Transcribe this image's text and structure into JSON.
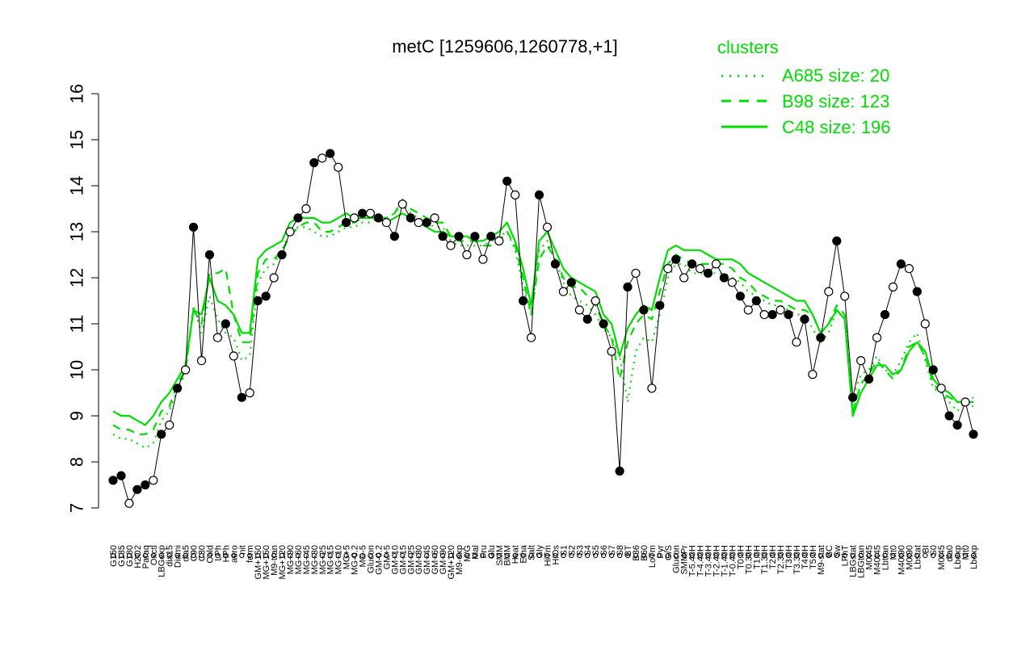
{
  "colors": {
    "accent": "#00dd00",
    "points": "#000000",
    "open_point_fill": "#ffffff"
  },
  "chart_data": {
    "type": "line",
    "title": "metC [1259606,1260778,+1]",
    "xlabel": "",
    "ylabel": "",
    "ylim": [
      7,
      16
    ],
    "yticks": [
      7,
      8,
      9,
      10,
      11,
      12,
      13,
      14,
      15,
      16
    ],
    "grid": false,
    "legend": {
      "title": "clusters",
      "position": "top-right",
      "entries": [
        {
          "label": "A685 size: 20",
          "style": "dotted"
        },
        {
          "label": "B98 size: 123",
          "style": "dashed"
        },
        {
          "label": "C48 size: 196",
          "style": "solid"
        }
      ]
    },
    "x_tick_labels": [
      "G150",
      "G135",
      "G180",
      "H2O2",
      "Paraq",
      "Oxctl",
      "LBGexp",
      "dia15",
      "Diami",
      "dia5",
      "C90",
      "C30",
      "Cold",
      "LPh",
      "HPh",
      "aero",
      "nit",
      "ferm",
      "GM+150",
      "MG+150",
      "M9-tran",
      "MG+120",
      "MG+90",
      "MG+60",
      "MG+45",
      "MG+30",
      "MG+25",
      "MG+15",
      "MG+10",
      "MG+5",
      "MG-0.2",
      "MG-5",
      "Glucon",
      "GM-0.2",
      "GM+5",
      "GM+10",
      "GM+15",
      "GM+25",
      "GM+30",
      "GM+45",
      "GM+60",
      "GM+90",
      "GM+120",
      "M9-exp",
      "M/G",
      "Mal",
      "Fru",
      "Glu",
      "SMM",
      "BMM",
      "Heat",
      "Etha",
      "Salt",
      "Gly",
      "HiTm",
      "HiOs",
      "S1",
      "S2",
      "S3",
      "S4",
      "S5",
      "S6",
      "S7",
      "S8",
      "BT",
      "B36",
      "B60",
      "LoTm",
      "Pyr",
      "G/S",
      "Glucon",
      "SMMPr",
      "T-5.40H",
      "T-4.40H",
      "T-3.40H",
      "T-2.40H",
      "T-1.40H",
      "T-0.40H",
      "T0.0H",
      "T0.30H",
      "T1.0H",
      "T1.30H",
      "T2.0H",
      "T2.30H",
      "T3.0H",
      "T3.30H",
      "T4.0H",
      "T5.0H",
      "M9-stat",
      "BC",
      "Sw",
      "LPhT",
      "LBGstat",
      "LBGtran",
      "M0t45",
      "M40t45",
      "Lbtran",
      "Mt0",
      "M40t90",
      "M0t90",
      "Lbstat",
      "BI",
      "S0",
      "M0t45",
      "dia0",
      "Lbexp",
      "Mt0",
      "Lbexp"
    ],
    "series": [
      {
        "name": "A685 size: 20",
        "style": "dotted",
        "y": [
          8.6,
          8.5,
          8.5,
          8.4,
          8.3,
          8.4,
          8.9,
          9.1,
          9.6,
          9.9,
          11.4,
          10.8,
          11.6,
          11.1,
          10.8,
          10.7,
          10.2,
          10.3,
          11.9,
          12.2,
          12.3,
          12.6,
          13.0,
          13.1,
          13.1,
          13.0,
          12.9,
          12.9,
          13.0,
          13.1,
          13.1,
          13.2,
          13.2,
          13.3,
          13.3,
          13.4,
          13.6,
          13.4,
          13.3,
          13.2,
          13.1,
          13.1,
          12.8,
          12.7,
          12.7,
          12.7,
          12.7,
          12.8,
          12.9,
          13.0,
          12.6,
          11.8,
          11.2,
          12.6,
          12.8,
          12.4,
          11.9,
          11.6,
          11.5,
          11.4,
          11.2,
          10.9,
          10.7,
          10.3,
          9.3,
          10.4,
          10.7,
          10.6,
          11.2,
          12.0,
          12.3,
          12.3,
          12.1,
          12.1,
          12.1,
          12.1,
          12.1,
          12.0,
          11.9,
          11.7,
          11.6,
          11.5,
          11.4,
          11.4,
          11.3,
          11.2,
          11.2,
          10.9,
          10.6,
          10.8,
          11.3,
          11.1,
          9.4,
          9.9,
          10.0,
          10.3,
          10.0,
          9.9,
          10.2,
          10.6,
          10.8,
          10.2,
          9.6,
          9.5,
          9.3,
          9.1,
          9.3,
          9.2
        ]
      },
      {
        "name": "B98 size: 123",
        "style": "dashed",
        "y": [
          8.8,
          8.7,
          8.7,
          8.6,
          8.6,
          8.7,
          9.1,
          9.2,
          9.7,
          10.0,
          11.3,
          11.0,
          12.1,
          12.1,
          12.2,
          11.2,
          10.6,
          10.6,
          12.1,
          12.4,
          12.4,
          12.6,
          12.9,
          13.1,
          13.2,
          13.2,
          13.0,
          13.0,
          13.1,
          13.2,
          13.2,
          13.3,
          13.3,
          13.3,
          13.3,
          13.4,
          13.7,
          13.5,
          13.4,
          13.3,
          13.2,
          13.2,
          12.9,
          12.8,
          12.8,
          12.8,
          12.7,
          12.7,
          12.8,
          13.0,
          12.7,
          12.0,
          11.2,
          12.4,
          12.7,
          12.4,
          12.0,
          11.8,
          11.8,
          11.6,
          11.4,
          11.0,
          10.7,
          9.8,
          10.6,
          11.0,
          11.2,
          11.1,
          11.7,
          12.3,
          12.5,
          12.4,
          12.3,
          12.3,
          12.3,
          12.3,
          12.3,
          12.2,
          12.0,
          11.9,
          11.7,
          11.6,
          11.5,
          11.5,
          11.4,
          11.3,
          11.3,
          11.2,
          10.8,
          11.0,
          11.4,
          11.2,
          9.1,
          9.7,
          9.9,
          10.2,
          10.0,
          9.8,
          10.0,
          10.5,
          10.6,
          10.3,
          9.7,
          9.5,
          9.4,
          9.3,
          9.3,
          9.4
        ]
      },
      {
        "name": "C48 size: 196",
        "style": "solid",
        "y": [
          9.1,
          9.0,
          9.0,
          8.9,
          8.8,
          9.0,
          9.3,
          9.5,
          9.8,
          10.1,
          11.3,
          11.2,
          12.0,
          11.5,
          11.4,
          11.2,
          10.8,
          10.8,
          12.4,
          12.6,
          12.7,
          12.8,
          13.2,
          13.3,
          13.3,
          13.3,
          13.2,
          13.2,
          13.3,
          13.4,
          13.3,
          13.3,
          13.3,
          13.3,
          13.2,
          13.3,
          13.4,
          13.3,
          13.2,
          13.1,
          13.0,
          13.0,
          12.9,
          12.9,
          12.9,
          12.8,
          12.8,
          12.9,
          13.0,
          13.2,
          12.8,
          12.2,
          11.4,
          12.8,
          13.0,
          12.6,
          12.2,
          12.0,
          11.9,
          11.8,
          11.7,
          11.2,
          11.0,
          10.3,
          10.9,
          11.2,
          11.4,
          11.3,
          12.0,
          12.6,
          12.7,
          12.6,
          12.6,
          12.6,
          12.5,
          12.4,
          12.4,
          12.4,
          12.3,
          12.1,
          12.0,
          11.9,
          11.8,
          11.7,
          11.6,
          11.5,
          11.5,
          11.2,
          10.8,
          11.0,
          11.3,
          11.1,
          9.0,
          9.5,
          9.8,
          10.1,
          10.1,
          9.9,
          10.0,
          10.4,
          10.6,
          10.4,
          9.8,
          9.6,
          9.5,
          9.3,
          9.3,
          9.3
        ]
      }
    ],
    "points": {
      "y": [
        7.6,
        7.7,
        7.1,
        7.4,
        7.5,
        7.6,
        8.6,
        8.8,
        9.6,
        10.0,
        13.1,
        10.2,
        12.5,
        10.7,
        11.0,
        10.3,
        9.4,
        9.5,
        11.5,
        11.6,
        12.0,
        12.5,
        13.0,
        13.3,
        13.5,
        14.5,
        14.6,
        14.7,
        14.4,
        13.2,
        13.3,
        13.4,
        13.4,
        13.3,
        13.2,
        12.9,
        13.6,
        13.3,
        13.2,
        13.2,
        13.3,
        12.9,
        12.7,
        12.9,
        12.5,
        12.9,
        12.4,
        12.9,
        12.8,
        14.1,
        13.8,
        11.5,
        10.7,
        13.8,
        13.1,
        12.3,
        11.7,
        11.9,
        11.3,
        11.1,
        11.5,
        11.0,
        10.4,
        7.8,
        11.8,
        12.1,
        11.3,
        9.6,
        11.4,
        12.2,
        12.4,
        12.0,
        12.3,
        12.2,
        12.1,
        12.3,
        12.0,
        11.9,
        11.6,
        11.3,
        11.5,
        11.2,
        11.2,
        11.3,
        11.2,
        10.6,
        11.1,
        9.9,
        10.7,
        11.7,
        12.8,
        11.6,
        9.4,
        10.2,
        9.8,
        10.7,
        11.2,
        11.8,
        12.3,
        12.2,
        11.7,
        11.0,
        10.0,
        9.6,
        9.0,
        8.8,
        9.3,
        8.6
      ],
      "filled": [
        true,
        true,
        false,
        true,
        true,
        false,
        true,
        false,
        true,
        false,
        true,
        false,
        true,
        false,
        true,
        false,
        true,
        false,
        true,
        true,
        false,
        true,
        false,
        true,
        false,
        true,
        false,
        true,
        false,
        true,
        false,
        true,
        false,
        true,
        false,
        true,
        false,
        true,
        false,
        true,
        false,
        true,
        false,
        true,
        false,
        true,
        false,
        true,
        false,
        true,
        false,
        true,
        false,
        true,
        false,
        true,
        false,
        true,
        false,
        true,
        false,
        true,
        false,
        true,
        true,
        false,
        true,
        false,
        true,
        false,
        true,
        false,
        true,
        false,
        true,
        false,
        true,
        false,
        true,
        false,
        true,
        false,
        true,
        false,
        true,
        false,
        true,
        false,
        true,
        false,
        true,
        false,
        true,
        false,
        true,
        false,
        true,
        false,
        true,
        false,
        true,
        false,
        true,
        false,
        true,
        true,
        false,
        true
      ]
    }
  }
}
